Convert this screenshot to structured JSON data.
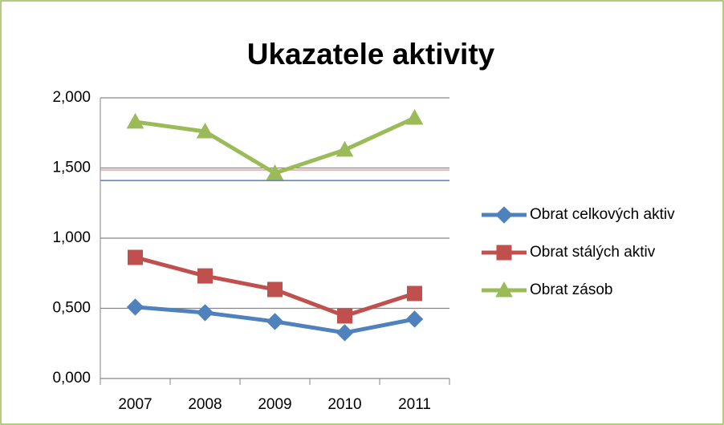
{
  "chart_data": {
    "type": "line",
    "title": "Ukazatele aktivity",
    "categories": [
      "2007",
      "2008",
      "2009",
      "2010",
      "2011"
    ],
    "series": [
      {
        "name": "Obrat celkových aktiv",
        "color": "#4f81bd",
        "marker": "diamond",
        "values": [
          0.509,
          0.469,
          0.406,
          0.326,
          0.423
        ]
      },
      {
        "name": "Obrat stálých aktiv",
        "color": "#c0504d",
        "marker": "square",
        "values": [
          0.863,
          0.731,
          0.634,
          0.446,
          0.606
        ]
      },
      {
        "name": "Obrat zásob",
        "color": "#9bbb59",
        "marker": "triangle",
        "values": [
          1.829,
          1.76,
          1.463,
          1.629,
          1.857
        ]
      }
    ],
    "reference_lines": [
      {
        "value": 1.411,
        "color": "#4f81bd"
      },
      {
        "value": 1.486,
        "color": "#e6a0a0"
      }
    ],
    "ylim": [
      0,
      2
    ],
    "yticks": [
      {
        "value": 0,
        "label": "0,000"
      },
      {
        "value": 0.5,
        "label": "0,500"
      },
      {
        "value": 1,
        "label": "1,000"
      },
      {
        "value": 1.5,
        "label": "1,500"
      },
      {
        "value": 2,
        "label": "2,000"
      }
    ],
    "grid": true,
    "legend": "right"
  }
}
